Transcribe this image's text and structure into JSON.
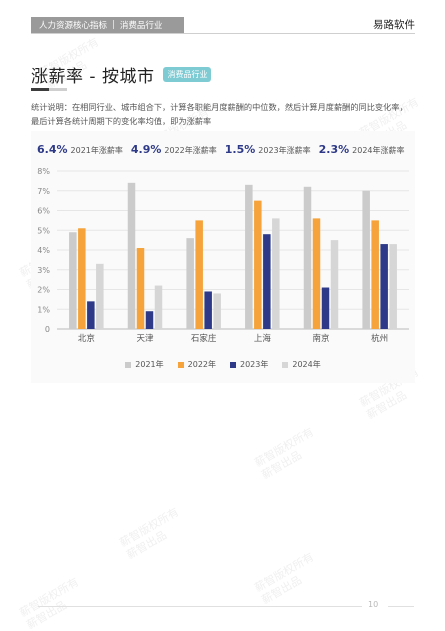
{
  "header": {
    "breadcrumb_left": "人力资源核心指标",
    "breadcrumb_sep": "|",
    "breadcrumb_right": "消费品行业",
    "brand": "易路软件"
  },
  "title": {
    "text": "涨薪率 - 按城市",
    "tag": "消费品行业"
  },
  "explanation": "统计说明：在相同行业、城市组合下，计算各职能月度薪酬的中位数，然后计算月度薪酬的同比变化率，最后计算各统计周期下的变化率均值，即为涨薪率",
  "stats": [
    {
      "value": "6.4%",
      "label": "2021年涨薪率"
    },
    {
      "value": "4.9%",
      "label": "2022年涨薪率"
    },
    {
      "value": "1.5%",
      "label": "2023年涨薪率"
    },
    {
      "value": "2.3%",
      "label": "2024年涨薪率"
    }
  ],
  "watermark": {
    "line1": "薪智版权所有",
    "line2": "薪智出品"
  },
  "page_number": "10",
  "chart_data": {
    "type": "bar",
    "categories": [
      "北京",
      "天津",
      "石家庄",
      "上海",
      "南京",
      "杭州"
    ],
    "series": [
      {
        "name": "2021年",
        "color": "#cbcbcb",
        "values": [
          4.9,
          7.4,
          4.6,
          7.3,
          7.2,
          7.0
        ]
      },
      {
        "name": "2022年",
        "color": "#f5a33a",
        "values": [
          5.1,
          4.1,
          5.5,
          6.5,
          5.6,
          5.5
        ]
      },
      {
        "name": "2023年",
        "color": "#2e3a87",
        "values": [
          1.4,
          0.9,
          1.9,
          4.8,
          2.1,
          4.3
        ]
      },
      {
        "name": "2024年",
        "color": "#d6d6d6",
        "values": [
          3.3,
          2.2,
          1.8,
          5.6,
          4.5,
          4.3
        ]
      }
    ],
    "yticks": [
      "0",
      "1%",
      "2%",
      "3%",
      "4%",
      "5%",
      "6%",
      "7%",
      "8%"
    ],
    "ylim": [
      0,
      8
    ],
    "grid": true,
    "legend_position": "bottom"
  }
}
